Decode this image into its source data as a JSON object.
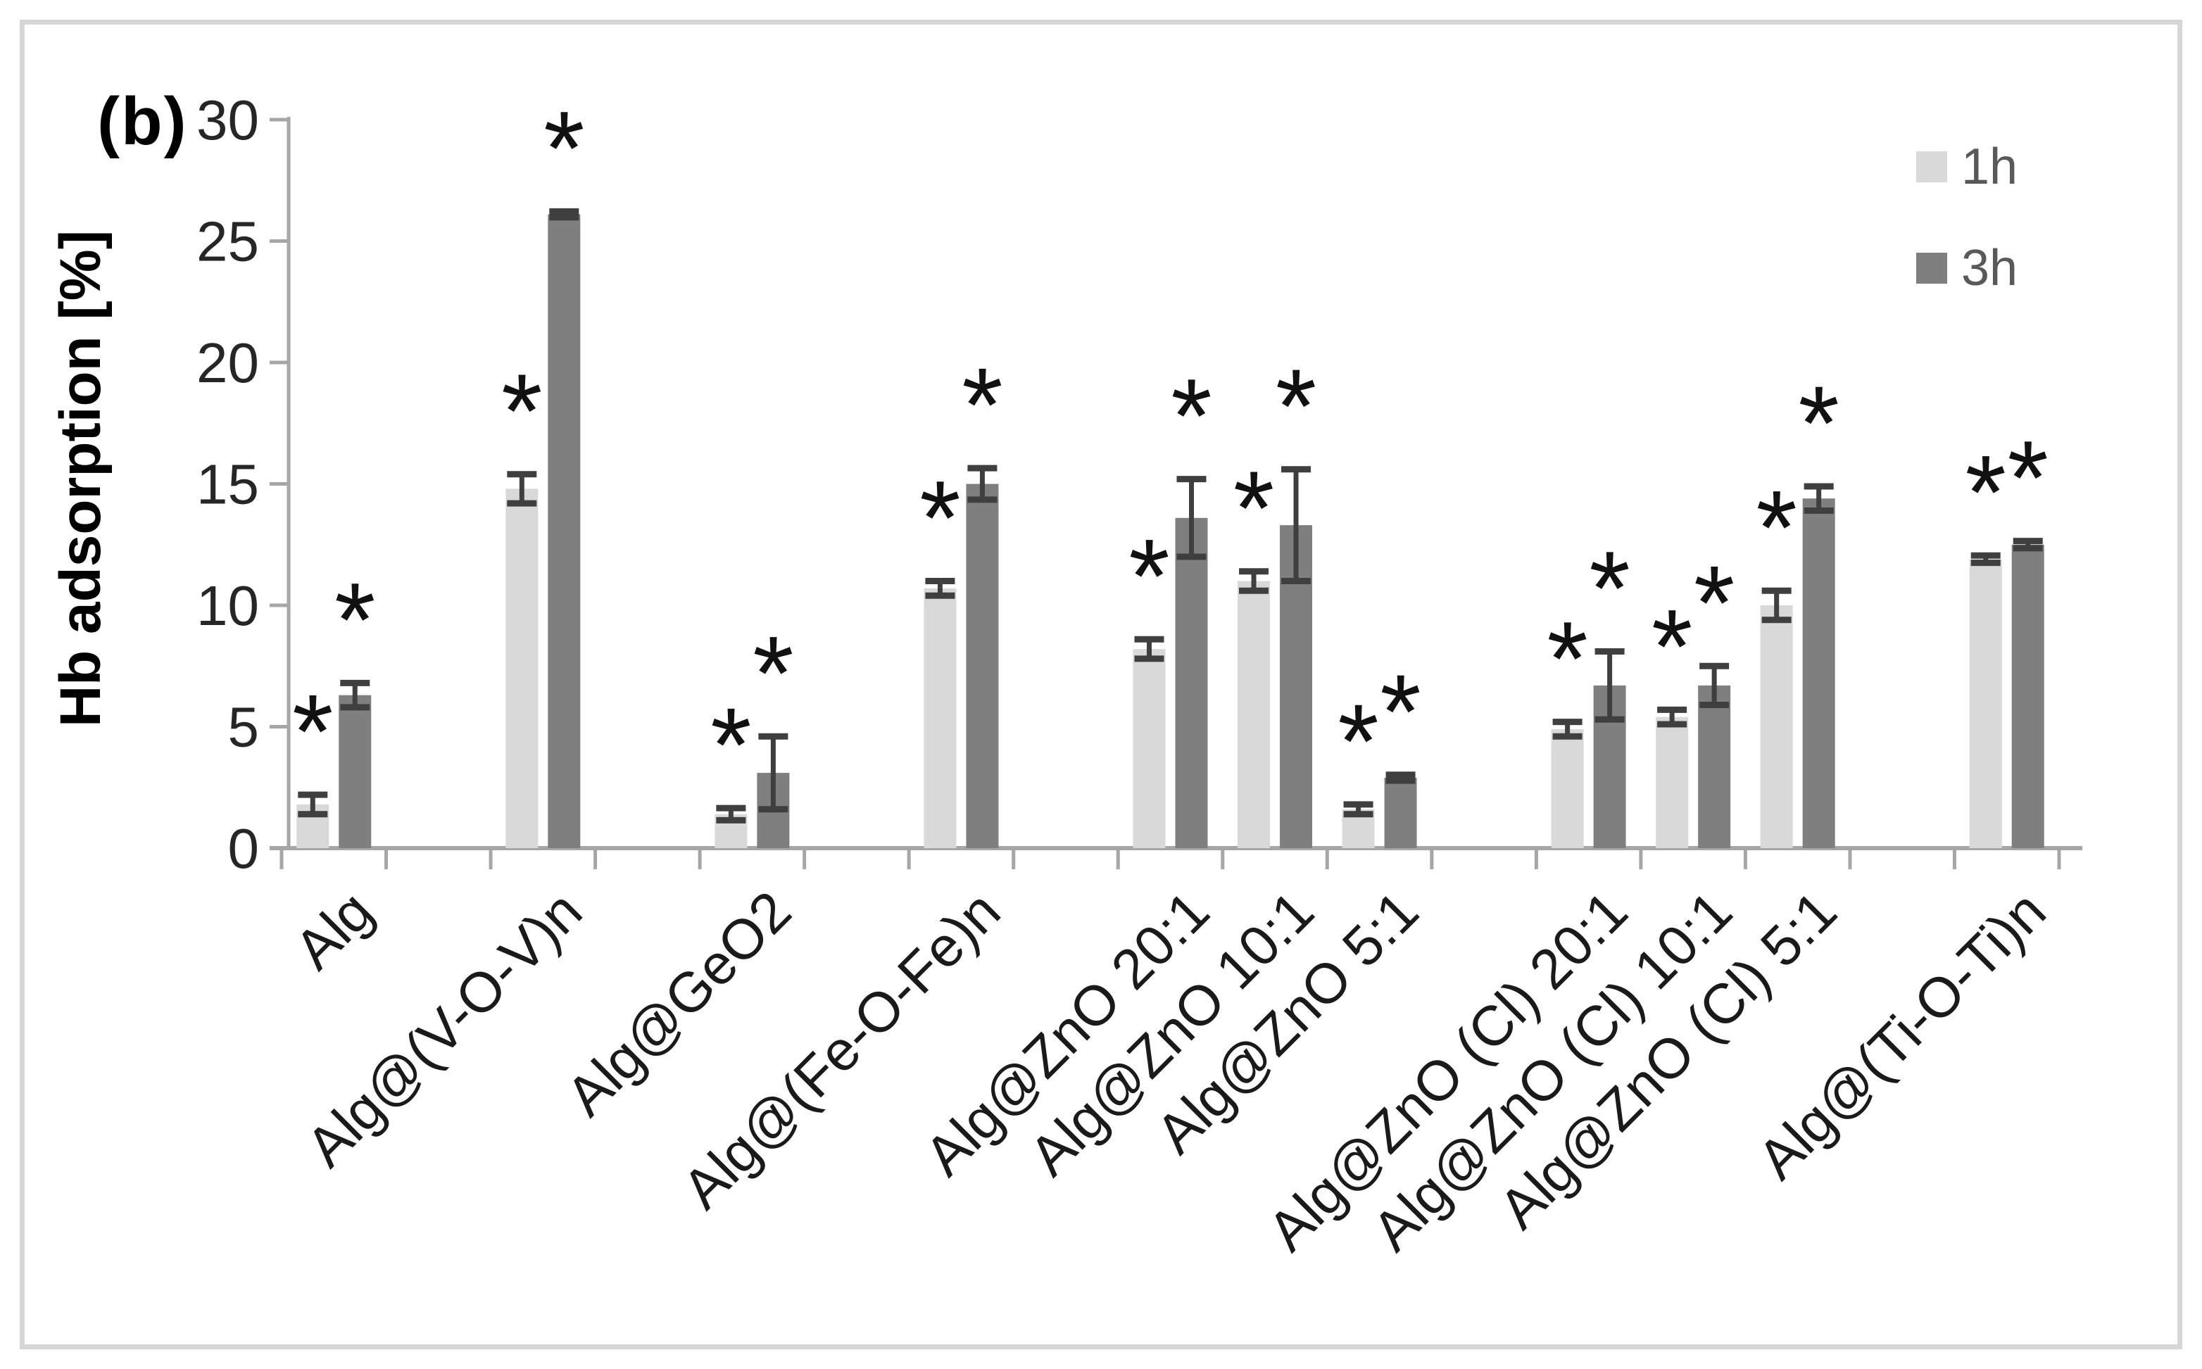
{
  "panel_label": "(b)",
  "colors": {
    "series_1h": "#d9d9d9",
    "series_3h": "#7f7f7f",
    "error_bar": "#3f3f3f",
    "axis_line": "#a6a6a6",
    "tick_text": "#262626",
    "legend_text": "#595959",
    "star": "#111111"
  },
  "chart_data": {
    "type": "bar",
    "title": "",
    "xlabel": "",
    "ylabel": "Hb adsorption [%]",
    "ylim": [
      0,
      30
    ],
    "yticks": [
      0,
      5,
      10,
      15,
      20,
      25,
      30
    ],
    "grid": false,
    "legend_position": "top-right",
    "categories": [
      "Alg",
      "Alg@(V-O-V)n",
      "Alg@GeO2",
      "Alg@(Fe-O-Fe)n",
      "Alg@ZnO 20:1",
      "Alg@ZnO 10:1",
      "Alg@ZnO 5:1",
      "Alg@ZnO (Cl) 20:1",
      "Alg@ZnO (Cl) 10:1",
      "Alg@ZnO (Cl) 5:1",
      "Alg@(Ti-O-Ti)n"
    ],
    "series": [
      {
        "name": "1h",
        "color": "#d9d9d9",
        "values": [
          1.8,
          14.8,
          1.4,
          10.7,
          8.2,
          11.0,
          1.6,
          4.9,
          5.4,
          10.0,
          11.9
        ],
        "errors": [
          0.4,
          0.6,
          0.25,
          0.3,
          0.4,
          0.4,
          0.2,
          0.3,
          0.3,
          0.6,
          0.15
        ],
        "significance": [
          "*",
          "*",
          "*",
          "*",
          "*",
          "*",
          "*",
          "*",
          "*",
          "*",
          "*"
        ]
      },
      {
        "name": "3h",
        "color": "#7f7f7f",
        "values": [
          6.3,
          26.1,
          3.1,
          15.0,
          13.6,
          13.3,
          2.9,
          6.7,
          6.7,
          14.4,
          12.5
        ],
        "errors": [
          0.5,
          0.12,
          1.5,
          0.65,
          1.6,
          2.3,
          0.12,
          1.4,
          0.8,
          0.5,
          0.15
        ],
        "significance": [
          "*",
          "*",
          "*",
          "*",
          "*",
          "*",
          "*",
          "*",
          "*",
          "*",
          "*"
        ]
      }
    ],
    "category_slots": [
      0,
      2,
      4,
      6,
      8,
      9,
      10,
      12,
      13,
      14,
      16
    ],
    "total_slots": 17
  }
}
